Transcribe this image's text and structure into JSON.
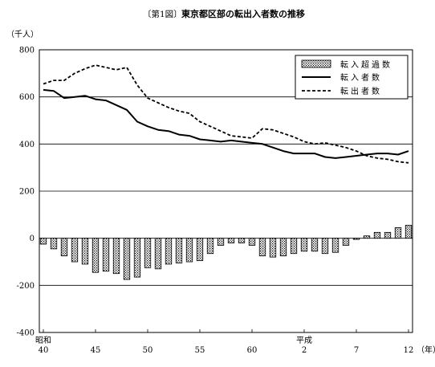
{
  "chart_data": {
    "type": "bar",
    "caption": "〔第1図〕",
    "title": "東京都区部の転出入者数の推移",
    "ylabel": "（千人）",
    "ylim": [
      -400,
      800
    ],
    "yticks": [
      -400,
      -200,
      0,
      200,
      400,
      600,
      800
    ],
    "grid": true,
    "legend_position": "top-right",
    "era_labels": [
      {
        "text": "昭和",
        "at_year": 1965
      },
      {
        "text": "平成",
        "at_year": 1990
      }
    ],
    "xtick_labels": [
      {
        "text": "40",
        "year": 1965
      },
      {
        "text": "45",
        "year": 1970
      },
      {
        "text": "50",
        "year": 1975
      },
      {
        "text": "55",
        "year": 1980
      },
      {
        "text": "60",
        "year": 1985
      },
      {
        "text": "2",
        "year": 1990
      },
      {
        "text": "7",
        "year": 1995
      },
      {
        "text": "12",
        "year": 2000
      }
    ],
    "x_unit": "（年）",
    "x": [
      1965,
      1966,
      1967,
      1968,
      1969,
      1970,
      1971,
      1972,
      1973,
      1974,
      1975,
      1976,
      1977,
      1978,
      1979,
      1980,
      1981,
      1982,
      1983,
      1984,
      1985,
      1986,
      1987,
      1988,
      1989,
      1990,
      1991,
      1992,
      1993,
      1994,
      1995,
      1996,
      1997,
      1998,
      1999,
      2000
    ],
    "series": [
      {
        "name": "転入超過数",
        "kind": "bar",
        "values": [
          -25,
          -45,
          -75,
          -100,
          -110,
          -145,
          -140,
          -150,
          -175,
          -165,
          -125,
          -130,
          -110,
          -105,
          -100,
          -95,
          -65,
          -30,
          -20,
          -20,
          -30,
          -75,
          -80,
          -75,
          -65,
          -55,
          -55,
          -65,
          -60,
          -30,
          -5,
          10,
          25,
          25,
          45,
          55
        ]
      },
      {
        "name": "転入者数",
        "kind": "line",
        "style": "solid",
        "values": [
          630,
          625,
          595,
          600,
          605,
          590,
          585,
          565,
          545,
          495,
          475,
          460,
          455,
          440,
          435,
          420,
          415,
          410,
          415,
          410,
          405,
          400,
          385,
          370,
          360,
          360,
          360,
          345,
          340,
          345,
          350,
          355,
          360,
          360,
          355,
          370
        ]
      },
      {
        "name": "転出者数",
        "kind": "line",
        "style": "dashed",
        "values": [
          655,
          670,
          670,
          700,
          720,
          735,
          725,
          715,
          725,
          650,
          595,
          575,
          555,
          540,
          530,
          495,
          475,
          455,
          435,
          430,
          425,
          465,
          460,
          445,
          430,
          410,
          400,
          405,
          395,
          385,
          370,
          350,
          340,
          335,
          325,
          320
        ]
      }
    ]
  }
}
